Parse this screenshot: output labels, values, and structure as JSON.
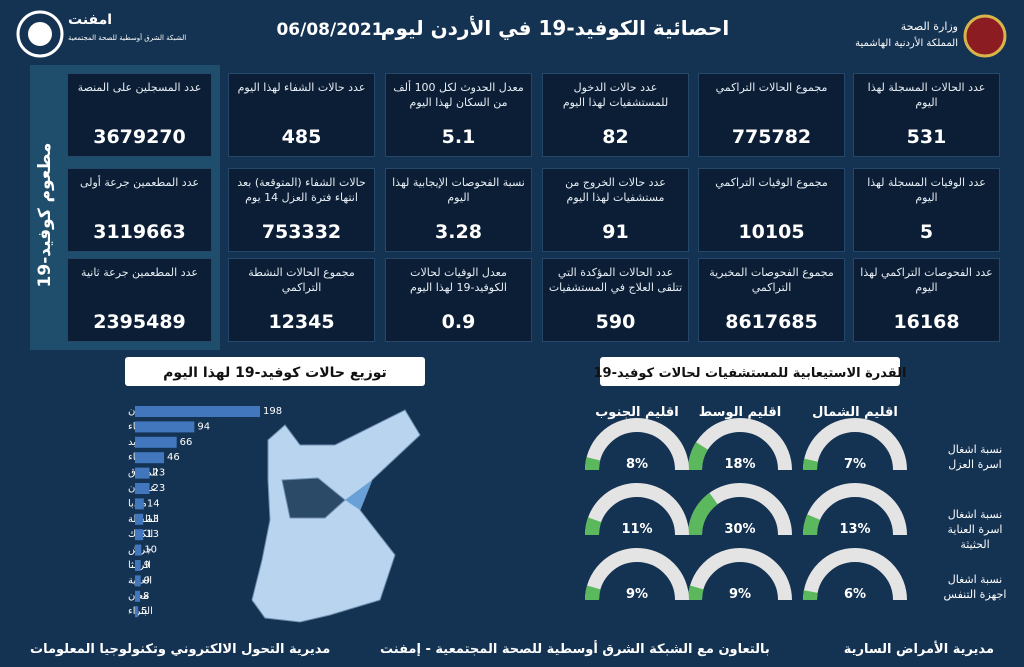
{
  "header": {
    "title": "احصائية الكوفيد-19 في الأردن ليوم",
    "date": "06/08/2021",
    "ministry": "وزارة الصحة",
    "kingdom": "المملكة الأردنية الهاشمية",
    "logo": "امفنت",
    "logo_subtitle": "الشبكة الشرق أوسطية للصحة المجتمعية"
  },
  "stats": {
    "columns": [
      [
        {
          "label": "عدد الحالات المسجلة لهذا اليوم",
          "value": 531
        },
        {
          "label": "عدد الوفيات المسجلة لهذا اليوم",
          "value": 5
        },
        {
          "label": "عدد الفحوصات التراكمي لهذا اليوم",
          "value": 16168
        }
      ],
      [
        {
          "label": "مجموع الحالات التراكمي",
          "value": 775782
        },
        {
          "label": "مجموع الوفيات التراكمي",
          "value": 10105
        },
        {
          "label": "مجموع الفحوصات المخبرية التراكمي",
          "value": 8617685
        }
      ],
      [
        {
          "label": "عدد حالات الدخول للمستشفيات لهذا اليوم",
          "value": 82
        },
        {
          "label": "عدد حالات الخروج من مستشفيات لهذا اليوم",
          "value": 91
        },
        {
          "label": "عدد الحالات المؤكدة التي تتلقى العلاج في المستشفيات",
          "value": 590
        }
      ],
      [
        {
          "label": "معدل الحدوث لكل 100 ألف من السكان لهذا اليوم",
          "value": 5.1
        },
        {
          "label": "نسبة الفحوصات الإيجابية لهذا اليوم",
          "value": 3.28
        },
        {
          "label": "معدل الوفيات لحالات الكوفيد-19 لهذا اليوم",
          "value": 0.9
        }
      ],
      [
        {
          "label": "عدد حالات الشفاء لهذا اليوم",
          "value": 485
        },
        {
          "label": "حالات الشفاء (المتوقعة) بعد انتهاء فترة العزل 14 يوم",
          "value": 753332
        },
        {
          "label": "مجموع الحالات النشطة التراكمي",
          "value": 12345
        }
      ]
    ]
  },
  "vaccine": {
    "title": "مطعوم كوفيد-19",
    "cards": [
      {
        "label": "عدد المسجلين على المنصة",
        "value": 3679270
      },
      {
        "label": "عدد المطعمين جرعة أولى",
        "value": 3119663
      },
      {
        "label": "عدد المطعمين جرعة ثانية",
        "value": 2395489
      }
    ]
  },
  "chart_data": [
    {
      "type": "bar",
      "title": "توزيع حالات كوفيد-19 لهذا اليوم",
      "color": "#4277bd",
      "categories": [
        "عمان",
        "الزرقاء",
        "اربد",
        "البلقاء",
        "المفرق",
        "عجلون",
        "مادبا",
        "الطفيلة",
        "الكرك",
        "جرش",
        "الرمثا",
        "العقبة",
        "معان",
        "البتراء"
      ],
      "values": [
        198,
        94,
        66,
        46,
        23,
        23,
        14,
        13,
        13,
        10,
        9,
        9,
        8,
        5
      ]
    },
    {
      "type": "gauge",
      "title": "القدرة الاستيعابية للمستشفيات لحالات كوفيد-19",
      "color": "#5cb85c",
      "ylim": [
        0,
        100
      ],
      "categories": [
        "اقليم الشمال",
        "اقليم الوسط",
        "اقليم الجنوب"
      ],
      "series": [
        {
          "name": "نسبة اشغال اسرة العزل",
          "values": [
            7,
            18,
            8
          ],
          "value_labels": [
            "7%",
            "18%",
            "8%"
          ]
        },
        {
          "name": "نسبة اشغال اسرة العناية الحثيثة",
          "values": [
            13,
            30,
            11
          ],
          "value_labels": [
            "13%",
            "30%",
            "11%"
          ]
        },
        {
          "name": "نسبة اشغال اجهزة التنفس",
          "values": [
            6,
            9,
            9
          ],
          "value_labels": [
            "6%",
            "9%",
            "9%"
          ]
        }
      ]
    }
  ],
  "footer": {
    "right": "مديرية الأمراض السارية",
    "center": "بالتعاون مع الشبكة الشرق أوسطية للصحة المجتمعية - إمفنت",
    "left": "مديرية التحول الالكتروني وتكنولوجيا المعلومات"
  }
}
